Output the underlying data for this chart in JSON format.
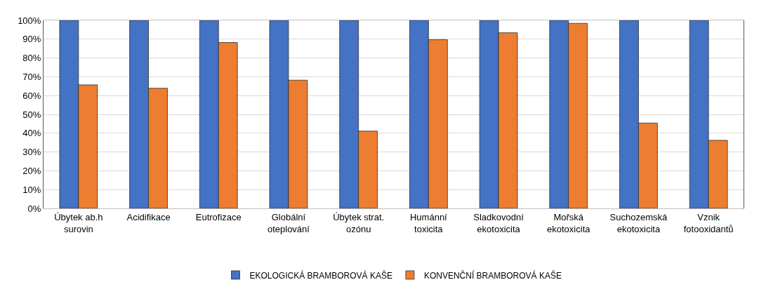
{
  "chart_data": {
    "type": "bar",
    "categories": [
      "Úbytek ab.h\nsurovin",
      "Acidifikace",
      "Eutrofizace",
      "Globální\noteplování",
      "Úbytek strat.\nozónu",
      "Humánní\ntoxicita",
      "Sladkovodní\nekotoxicita",
      "Mořská\nekotoxicita",
      "Suchozemská\nekotoxicita",
      "Vznik\nfotooxidantů"
    ],
    "series": [
      {
        "name": "EKOLOGICKÁ BRAMBOROVÁ KAŠE",
        "color": "#4472c4",
        "values": [
          100,
          100,
          100,
          100,
          100,
          100,
          100,
          100,
          100,
          100
        ]
      },
      {
        "name": "KONVENČNÍ BRAMBOROVÁ KAŠE",
        "color": "#ed7d31",
        "values": [
          65.7,
          63.9,
          88.2,
          68.2,
          41.1,
          89.7,
          93.4,
          98.4,
          45.4,
          36.2
        ]
      }
    ],
    "ylim": [
      0,
      100
    ],
    "yticks": [
      {
        "value": 0,
        "label": "0%"
      },
      {
        "value": 10,
        "label": "10%"
      },
      {
        "value": 20,
        "label": "20%"
      },
      {
        "value": 30,
        "label": "30%"
      },
      {
        "value": 40,
        "label": "40%"
      },
      {
        "value": 50,
        "label": "50%"
      },
      {
        "value": 60,
        "label": "60%"
      },
      {
        "value": 70,
        "label": "70%"
      },
      {
        "value": 80,
        "label": "80%"
      },
      {
        "value": 90,
        "label": "90%"
      },
      {
        "value": 100,
        "label": "100%"
      }
    ],
    "grid": "y",
    "legend": "bottom"
  }
}
